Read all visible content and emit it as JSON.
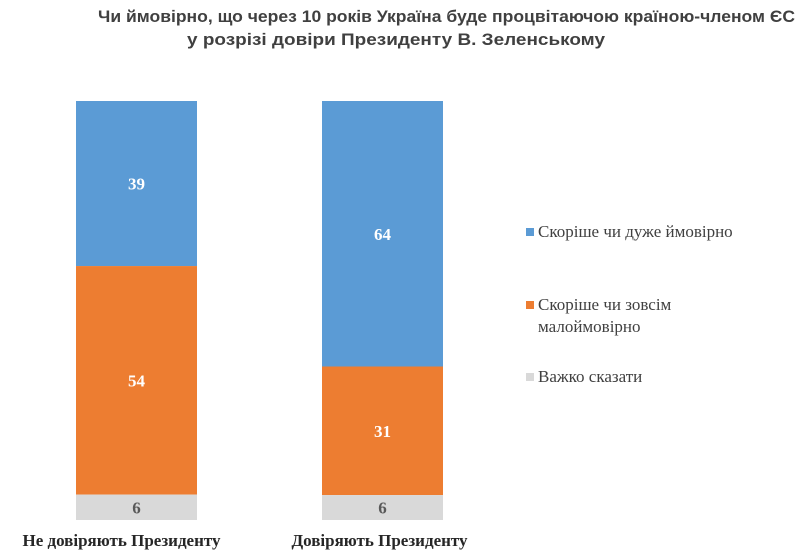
{
  "chart_data": {
    "type": "bar",
    "stacked": true,
    "normalized": true,
    "title_lines": [
      "Чи ймовірно, що через 10 років Україна буде процвітаючою країною-членом ЄС",
      "у розрізі довіри Президенту В. Зеленському"
    ],
    "categories": [
      "Не довіряють Президенту",
      "Довіряють Президенту"
    ],
    "series": [
      {
        "name": "Скоріше чи дуже ймовірно",
        "values": [
          39,
          64
        ],
        "color": "#5b9bd5",
        "label_color": "#ffffff"
      },
      {
        "name": "Скоріше чи зовсім малоймовірно",
        "values": [
          54,
          31
        ],
        "color": "#ed7d31",
        "label_color": "#ffffff"
      },
      {
        "name": "Важко сказати",
        "values": [
          6,
          6
        ],
        "color": "#d9d9d9",
        "label_color": "#595959"
      }
    ],
    "legend": {
      "position": "right",
      "items": [
        {
          "lines": [
            "Скоріше чи дуже ймовірно"
          ],
          "color": "#5b9bd5"
        },
        {
          "lines": [
            "Скоріше чи зовсім",
            "малоймовірно"
          ],
          "color": "#ed7d31"
        },
        {
          "lines": [
            "Важко сказати"
          ],
          "color": "#d9d9d9"
        }
      ]
    },
    "grid": false,
    "axes_visible": false
  }
}
